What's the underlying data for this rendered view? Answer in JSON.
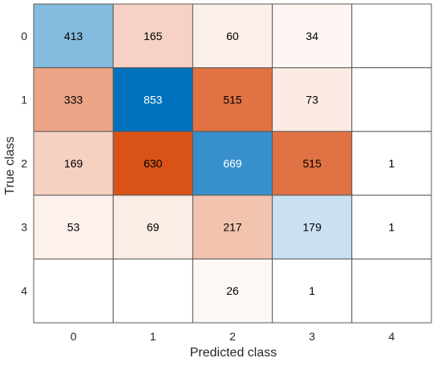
{
  "chart_data": {
    "type": "heatmap",
    "title": "",
    "xlabel": "Predicted class",
    "ylabel": "True class",
    "x_categories": [
      "0",
      "1",
      "2",
      "3",
      "4"
    ],
    "y_categories": [
      "0",
      "1",
      "2",
      "3",
      "4"
    ],
    "values": [
      [
        413,
        165,
        60,
        34,
        null
      ],
      [
        333,
        853,
        515,
        73,
        null
      ],
      [
        169,
        630,
        669,
        515,
        1
      ],
      [
        53,
        69,
        217,
        179,
        1
      ],
      [
        null,
        null,
        26,
        1,
        null
      ]
    ],
    "diagonal_colormap": {
      "low": "#ffffff",
      "high": "#0072bd"
    },
    "off_diagonal_colormap": {
      "low": "#ffffff",
      "high": "#d95319"
    },
    "grid": true
  }
}
